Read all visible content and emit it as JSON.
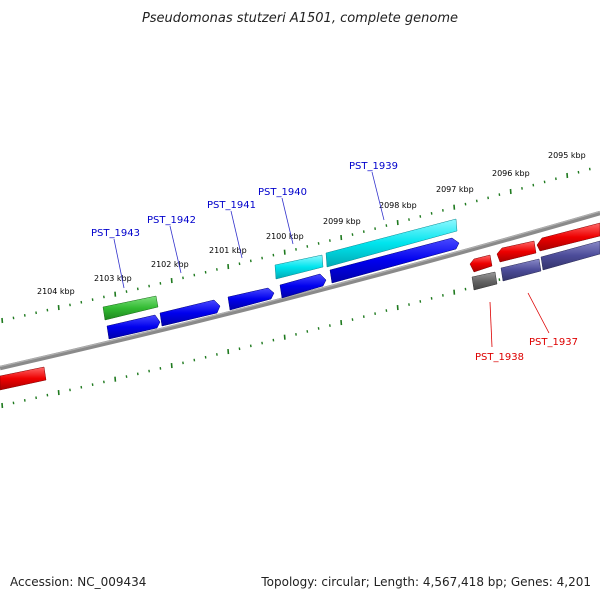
{
  "title": "Pseudomonas stutzeri A1501, complete genome",
  "footer": {
    "accession": "Accession: NC_009434",
    "summary": "Topology: circular; Length: 4,567,418 bp; Genes: 4,201"
  },
  "colors": {
    "background": "#ffffff",
    "backbone": "#808080",
    "tick": "#1f7a1f",
    "label_blue": "#0000cc",
    "label_red": "#dd0000",
    "gene_blue": "#0000ee",
    "gene_cyan": "#00e5ee",
    "gene_green": "#33bb33",
    "gene_red": "#ee0000",
    "gene_gray": "#666666",
    "gene_slate": "#4c4c99"
  },
  "kbp_labels": [
    "2095 kbp",
    "2096 kbp",
    "2097 kbp",
    "2098 kbp",
    "2099 kbp",
    "2100 kbp",
    "2101 kbp",
    "2102 kbp",
    "2103 kbp",
    "2104 kbp"
  ],
  "gene_labels": [
    "PST_1939",
    "PST_1940",
    "PST_1941",
    "PST_1942",
    "PST_1943",
    "PST_1938",
    "PST_1937"
  ]
}
